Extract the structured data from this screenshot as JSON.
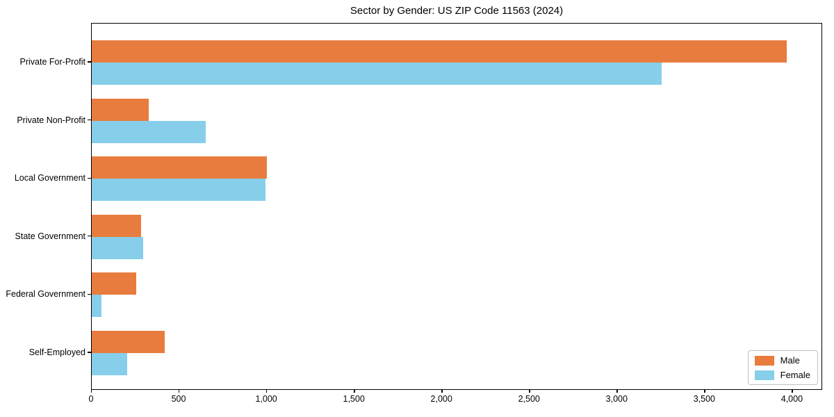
{
  "chart_data": {
    "type": "bar",
    "orientation": "horizontal",
    "title": "Sector by Gender: US ZIP Code 11563 (2024)",
    "categories": [
      "Private For-Profit",
      "Private Non-Profit",
      "Local Government",
      "State Government",
      "Federal Government",
      "Self-Employed"
    ],
    "series": [
      {
        "name": "Male",
        "color": "#e87c3e",
        "values": [
          3968,
          325,
          1000,
          282,
          254,
          416
        ]
      },
      {
        "name": "Female",
        "color": "#87ceeb",
        "values": [
          3253,
          649,
          994,
          294,
          57,
          203
        ]
      }
    ],
    "xlabel": "",
    "ylabel": "",
    "xlim": [
      0,
      4167
    ],
    "xticks": [
      {
        "value": 0,
        "label": "0"
      },
      {
        "value": 500,
        "label": "500"
      },
      {
        "value": 1000,
        "label": "1,000"
      },
      {
        "value": 1500,
        "label": "1,500"
      },
      {
        "value": 2000,
        "label": "2,000"
      },
      {
        "value": 2500,
        "label": "2,500"
      },
      {
        "value": 3000,
        "label": "3,000"
      },
      {
        "value": 3500,
        "label": "3,500"
      },
      {
        "value": 4000,
        "label": "4,000"
      }
    ],
    "grid": false,
    "legend_position": "lower right"
  }
}
